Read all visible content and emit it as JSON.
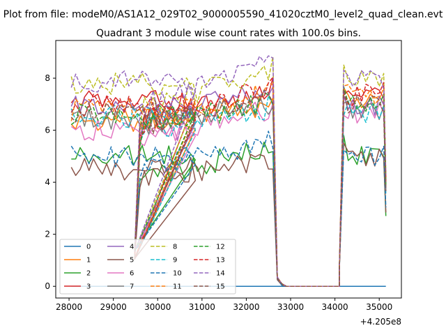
{
  "figure": {
    "suptitle": "Plot from file: modeM0/AS1A12_029T02_9000005590_41020cztM0_level2_quad_clean.evt",
    "title": "Quadrant 3 module wise count rates with 100.0s bins.",
    "x_offset_label": "+4.205e8"
  },
  "chart_data": {
    "type": "line",
    "title": "Quadrant 3 module wise count rates with 100.0s bins.",
    "xlabel": "",
    "ylabel": "",
    "x_offset": 420500000,
    "x_offset_label": "+4.205e8",
    "xlim": [
      27700,
      35500
    ],
    "ylim": [
      -0.45,
      9.45
    ],
    "xticks": [
      28000,
      29000,
      30000,
      31000,
      32000,
      33000,
      34000,
      35000
    ],
    "xtick_labels": [
      "28000",
      "29000",
      "30000",
      "31000",
      "32000",
      "33000",
      "34000",
      "35000"
    ],
    "yticks": [
      0,
      2,
      4,
      6,
      8
    ],
    "ytick_labels": [
      "0",
      "2",
      "4",
      "6",
      "8"
    ],
    "grid": false,
    "legend": {
      "position": "lower-left",
      "columns": 4
    },
    "bin_seconds": 100,
    "segments": [
      {
        "x_start": 28050,
        "n_points": 29
      },
      {
        "x_start": 29480,
        "n_points": 1
      },
      {
        "x_start": 29600,
        "n_points": 31
      },
      {
        "x_start": 32700,
        "n_points": 15
      },
      {
        "x_start": 34200,
        "n_points": 10
      }
    ],
    "series": [
      {
        "name": "0",
        "color": "#1f77b4",
        "dashed": false,
        "levels": [
          0,
          0,
          0,
          0
        ],
        "gap_values": [
          0.2,
          0.1,
          0,
          0
        ],
        "constant": 0
      },
      {
        "name": "1",
        "color": "#ff7f0e",
        "dashed": false,
        "levels": [
          6.4,
          6.4,
          7.0,
          7.2
        ],
        "gap_values": [
          0.35,
          0.1,
          0,
          0
        ]
      },
      {
        "name": "2",
        "color": "#2ca02c",
        "dashed": false,
        "levels": [
          5.0,
          4.2,
          5.3,
          5.1
        ],
        "gap_values": [
          0.3,
          0.05,
          0,
          0
        ]
      },
      {
        "name": "3",
        "color": "#d62728",
        "dashed": false,
        "levels": [
          7.1,
          6.2,
          7.6,
          7.3
        ],
        "gap_values": [
          0.35,
          0.1,
          0,
          0
        ]
      },
      {
        "name": "4",
        "color": "#9467bd",
        "dashed": false,
        "levels": [
          6.9,
          6.4,
          7.6,
          7.0
        ],
        "gap_values": [
          0.35,
          0.1,
          0,
          0
        ]
      },
      {
        "name": "5",
        "color": "#8c564b",
        "dashed": false,
        "levels": [
          4.5,
          4.2,
          4.8,
          4.9
        ],
        "gap_values": [
          0.25,
          0.05,
          0,
          0
        ]
      },
      {
        "name": "6",
        "color": "#e377c2",
        "dashed": false,
        "levels": [
          6.0,
          5.7,
          6.8,
          6.6
        ],
        "gap_values": [
          0.3,
          0.1,
          0,
          0
        ]
      },
      {
        "name": "7",
        "color": "#7f7f7f",
        "dashed": false,
        "levels": [
          6.4,
          6.2,
          7.0,
          6.8
        ],
        "gap_values": [
          0.3,
          0.1,
          0,
          0
        ]
      },
      {
        "name": "8",
        "color": "#bcbd22",
        "dashed": true,
        "levels": [
          7.8,
          6.8,
          8.4,
          8.0
        ],
        "gap_values": [
          0.35,
          0.1,
          0,
          0
        ]
      },
      {
        "name": "9",
        "color": "#17becf",
        "dashed": true,
        "levels": [
          6.5,
          6.0,
          6.9,
          6.7
        ],
        "gap_values": [
          0.3,
          0.1,
          0,
          0
        ]
      },
      {
        "name": "10",
        "color": "#1f77b4",
        "dashed": true,
        "levels": [
          5.0,
          4.4,
          5.6,
          5.1
        ],
        "gap_values": [
          0.3,
          0.05,
          0,
          0
        ]
      },
      {
        "name": "11",
        "color": "#ff7f0e",
        "dashed": true,
        "levels": [
          6.8,
          6.3,
          7.5,
          7.3
        ],
        "gap_values": [
          0.35,
          0.1,
          0,
          0
        ]
      },
      {
        "name": "12",
        "color": "#2ca02c",
        "dashed": true,
        "levels": [
          6.6,
          6.1,
          7.1,
          7.0
        ],
        "gap_values": [
          0.35,
          0.1,
          0,
          0
        ]
      },
      {
        "name": "13",
        "color": "#d62728",
        "dashed": true,
        "levels": [
          7.0,
          6.3,
          7.6,
          7.4
        ],
        "gap_values": [
          0.35,
          0.1,
          0,
          0
        ]
      },
      {
        "name": "14",
        "color": "#9467bd",
        "dashed": true,
        "levels": [
          7.9,
          6.9,
          8.7,
          8.0
        ],
        "gap_values": [
          0.35,
          0.1,
          0,
          0
        ]
      },
      {
        "name": "15",
        "color": "#8c564b",
        "dashed": true,
        "levels": [
          6.7,
          6.2,
          7.3,
          7.0
        ],
        "gap_values": [
          0.3,
          0.1,
          0,
          0
        ]
      }
    ]
  }
}
